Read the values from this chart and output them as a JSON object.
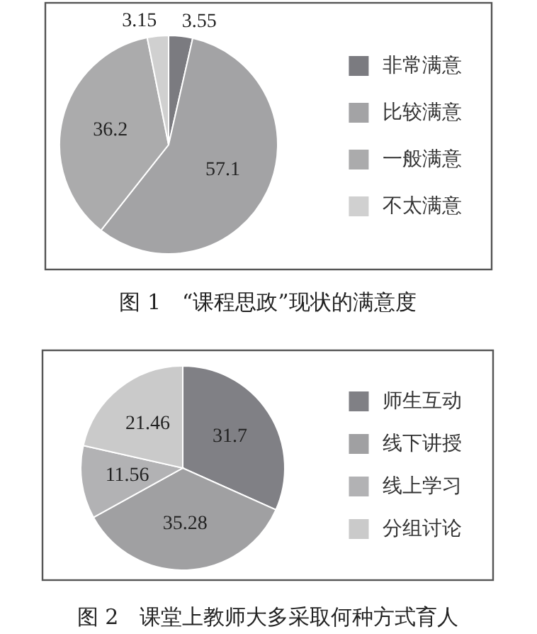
{
  "chart_data": [
    {
      "type": "pie",
      "title": "图 1　“课程思政”现状的满意度",
      "categories": [
        "非常满意",
        "比较满意",
        "一般满意",
        "不太满意"
      ],
      "values": [
        3.55,
        57.1,
        36.2,
        3.15
      ],
      "colors": [
        "#7b7b80",
        "#a3a3a5",
        "#ababac",
        "#d0d0d0"
      ],
      "data_labels": true,
      "legend": "right"
    },
    {
      "type": "pie",
      "title": "图 2　课堂上教师大多采取何种方式育人",
      "categories": [
        "师生互动",
        "线下讲授",
        "线上学习",
        "分组讨论"
      ],
      "values": [
        31.7,
        35.28,
        11.56,
        21.46
      ],
      "colors": [
        "#808085",
        "#a0a0a2",
        "#b2b2b4",
        "#cacaca"
      ],
      "data_labels": true,
      "legend": "right"
    }
  ]
}
